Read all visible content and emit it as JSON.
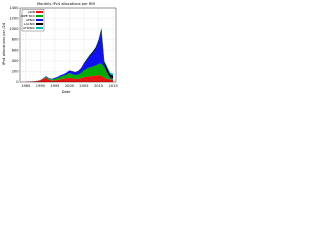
{
  "chart_data": {
    "type": "stacked_area",
    "title": "Monthly IPv4 allocations per RIR",
    "x_label": "Date",
    "y_label": "IPv4 allocations per /24",
    "x": [
      1985,
      1986,
      1987,
      1988,
      1989,
      1990,
      1991,
      1992,
      1993,
      1994,
      1995,
      1996,
      1997,
      1998,
      1999,
      2000,
      2001,
      2002,
      2003,
      2004,
      2005,
      2006,
      2007,
      2008,
      2009,
      2010,
      2011,
      2012,
      2013,
      2014,
      2015
    ],
    "series": [
      {
        "name": "ARIN",
        "color": "#ee1111",
        "values": [
          5,
          8,
          10,
          15,
          20,
          30,
          60,
          80,
          40,
          30,
          30,
          40,
          50,
          60,
          70,
          80,
          70,
          60,
          60,
          70,
          90,
          100,
          110,
          110,
          120,
          130,
          120,
          80,
          60,
          50,
          40
        ]
      },
      {
        "name": "RIPE NCC",
        "color": "#00aa00",
        "values": [
          0,
          0,
          0,
          1,
          2,
          5,
          10,
          20,
          20,
          20,
          30,
          40,
          50,
          60,
          70,
          90,
          80,
          70,
          80,
          100,
          130,
          150,
          170,
          180,
          190,
          210,
          230,
          200,
          100,
          20,
          20
        ]
      },
      {
        "name": "APNIC",
        "color": "#1111ee",
        "values": [
          0,
          0,
          0,
          0,
          1,
          3,
          5,
          10,
          10,
          10,
          20,
          20,
          30,
          30,
          40,
          50,
          50,
          50,
          60,
          80,
          120,
          160,
          200,
          250,
          300,
          400,
          600,
          30,
          20,
          15,
          10
        ]
      },
      {
        "name": "LACNIC",
        "color": "#000000",
        "values": [
          0,
          0,
          0,
          0,
          0,
          0,
          0,
          0,
          0,
          0,
          0,
          0,
          0,
          0,
          0,
          0,
          5,
          10,
          10,
          15,
          20,
          25,
          30,
          35,
          40,
          50,
          60,
          70,
          80,
          60,
          50
        ]
      },
      {
        "name": "AFRINIC",
        "color": "#00bbbb",
        "values": [
          0,
          0,
          0,
          0,
          0,
          0,
          0,
          0,
          0,
          0,
          0,
          0,
          0,
          0,
          0,
          0,
          0,
          0,
          0,
          0,
          2,
          5,
          5,
          8,
          10,
          15,
          20,
          25,
          30,
          35,
          40
        ]
      }
    ],
    "xlim": [
      1983,
      2016
    ],
    "xticks": [
      1985,
      1990,
      1995,
      2000,
      2005,
      2010,
      2015
    ],
    "ylim": [
      0,
      1400
    ],
    "yticks": [
      0,
      200,
      400,
      600,
      800,
      1000,
      1200,
      1400
    ],
    "grid": true,
    "legend": "upper left"
  }
}
